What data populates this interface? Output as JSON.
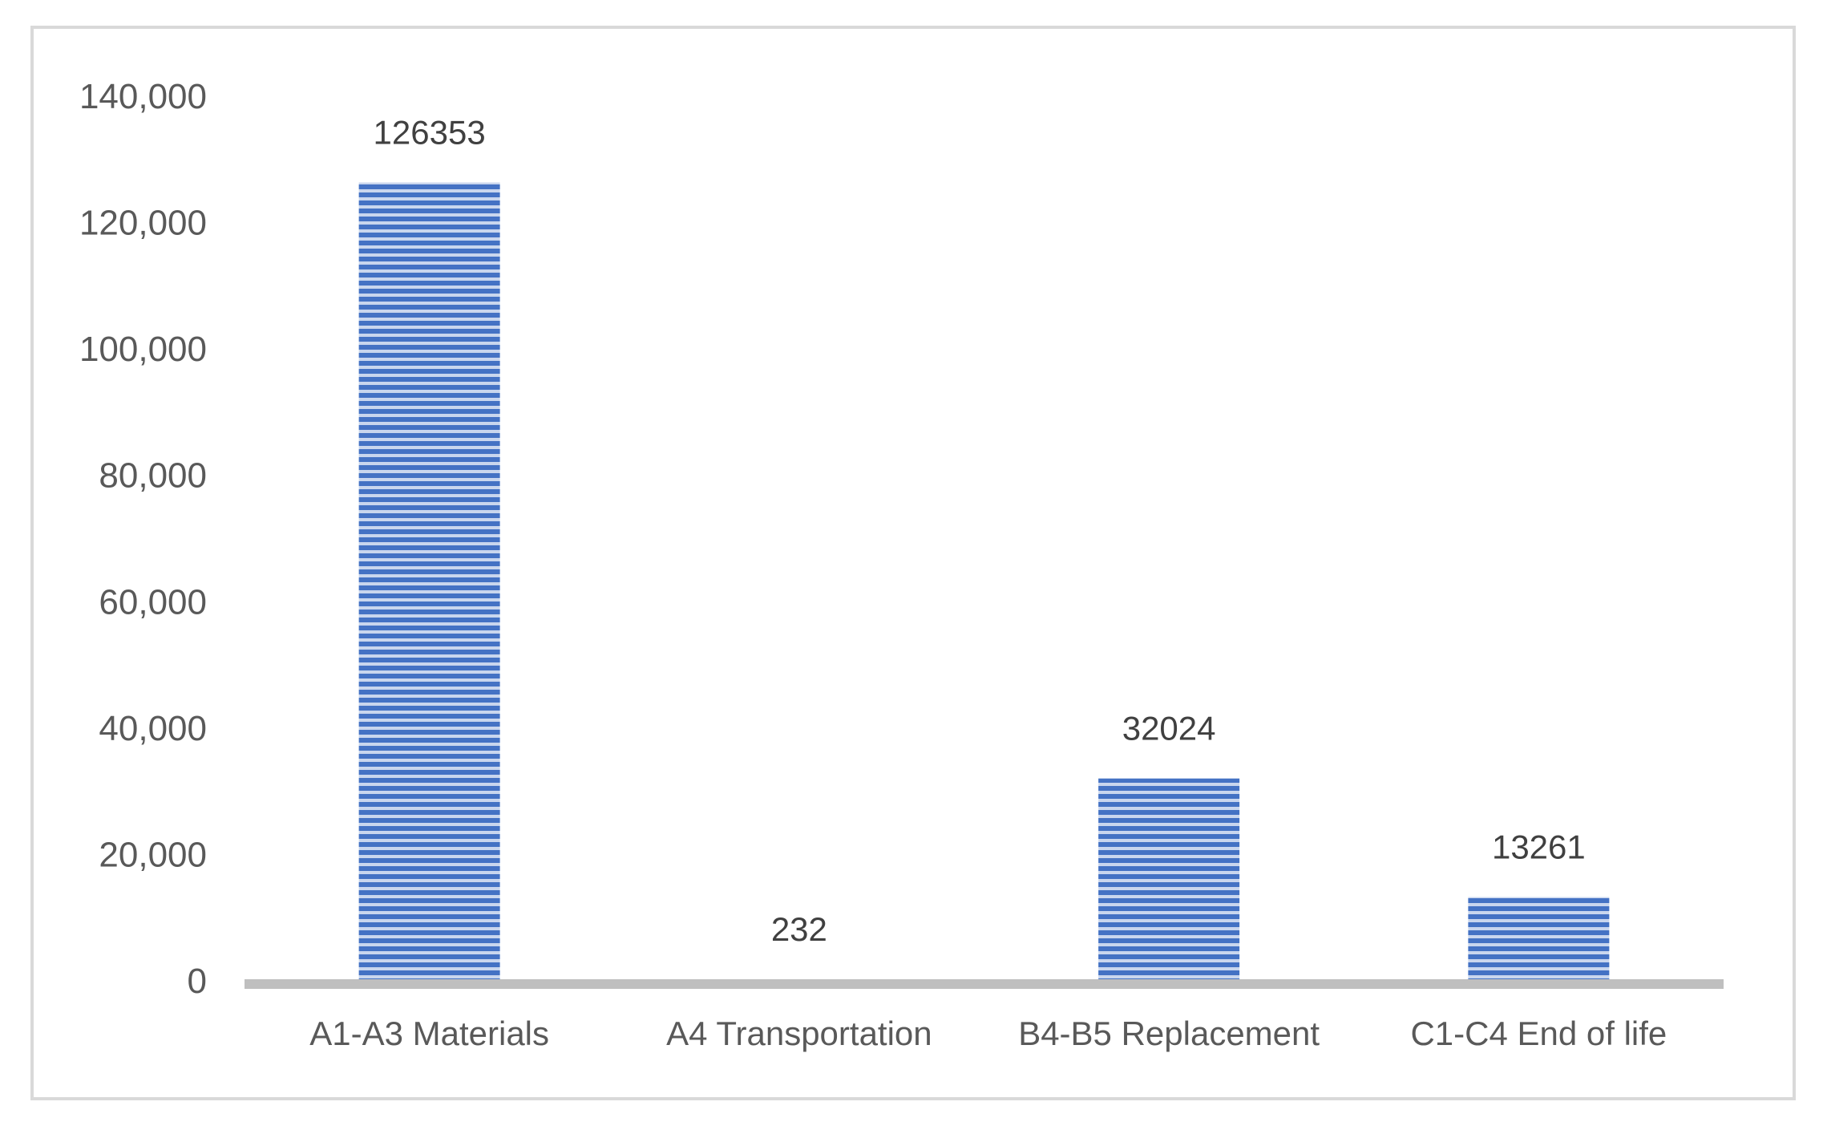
{
  "chart_data": {
    "type": "bar",
    "categories": [
      "A1-A3 Materials",
      "A4 Transportation",
      "B4-B5 Replacement",
      "C1-C4 End of life"
    ],
    "values": [
      126353,
      232,
      32024,
      13261
    ],
    "data_labels": [
      "126353",
      "232",
      "32024",
      "13261"
    ],
    "ylim": [
      0,
      140000
    ],
    "yticks": [
      0,
      20000,
      40000,
      60000,
      80000,
      100000,
      120000,
      140000
    ],
    "ytick_labels": [
      "0",
      "20,000",
      "40,000",
      "60,000",
      "80,000",
      "100,000",
      "120,000",
      "140,000"
    ],
    "grid": false,
    "bar_color": "#4472c4",
    "bar_stripe_color": "#c9d6ee",
    "axis_color": "#bfbfbf",
    "border_color": "#d9d9d9"
  }
}
